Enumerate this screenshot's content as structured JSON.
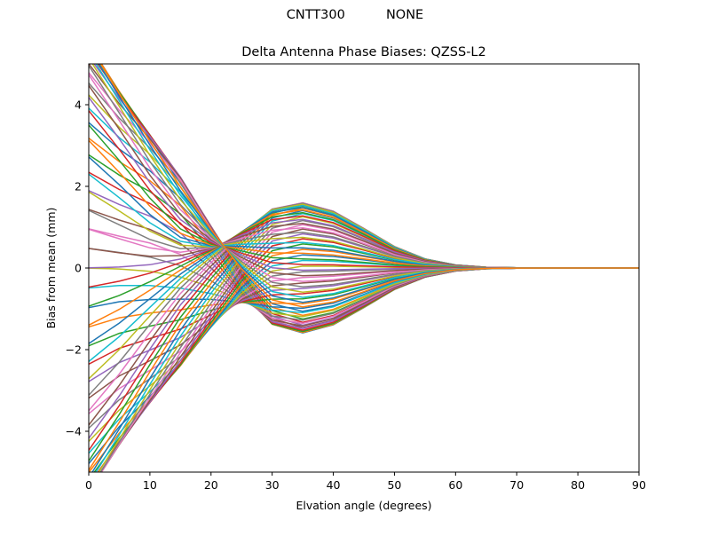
{
  "figure": {
    "suptitle_antenna": "CNTT300",
    "suptitle_radome": "NONE"
  },
  "chart_data": {
    "type": "line",
    "title": "Delta Antenna Phase Biases: QZSS-L2",
    "xlabel": "Elvation angle (degrees)",
    "ylabel": "Bias from mean (mm)",
    "xlim": [
      0,
      90
    ],
    "ylim": [
      -5,
      5
    ],
    "xticks": [
      0,
      10,
      20,
      30,
      40,
      50,
      60,
      70,
      80,
      90
    ],
    "yticks": [
      -4,
      -2,
      0,
      2,
      4
    ],
    "grid": false,
    "x": [
      0,
      5,
      10,
      15,
      20,
      25,
      30,
      35,
      40,
      45,
      50,
      55,
      60,
      65,
      70,
      75,
      80,
      85,
      90
    ],
    "series_count": 72,
    "series_note": "Approximately 72 azimuth curves; each series is the bias profile (mm) versus elevation angle, all converging to 0 at 90 degrees.",
    "colors": [
      "#1f77b4",
      "#ff7f0e",
      "#2ca02c",
      "#d62728",
      "#9467bd",
      "#8c564b",
      "#e377c2",
      "#7f7f7f",
      "#bcbd22",
      "#17becf"
    ],
    "profile": {
      "low_elevation_bias_range": [
        -5.6,
        5.4
      ],
      "mid_elevation_bias_range": [
        -2.15,
        1.62
      ],
      "mid_elevation_peak_deg": 33
    }
  }
}
